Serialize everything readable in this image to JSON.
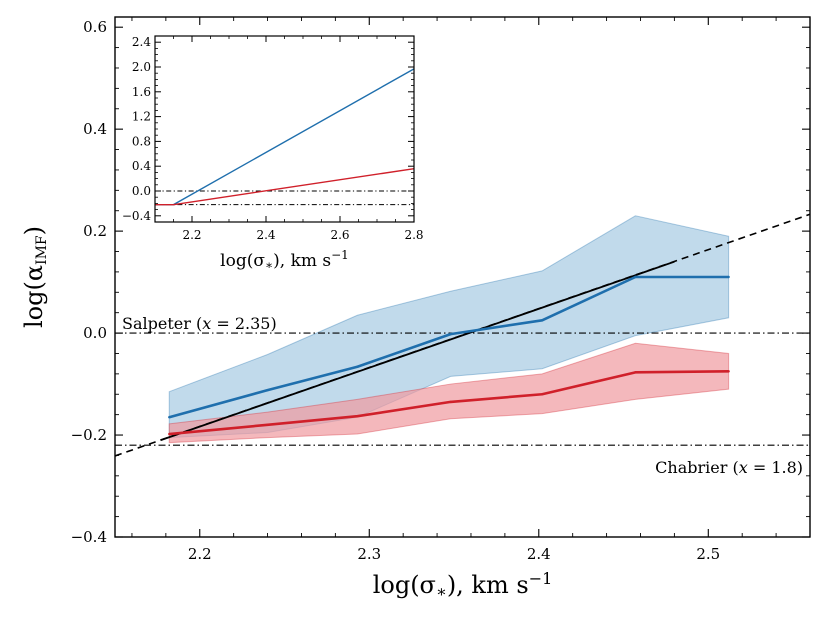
{
  "chart_data": [
    {
      "type": "line",
      "name": "main",
      "xlabel": "log(σ*), km s−1",
      "ylabel": "log(αIMF)",
      "xlim": [
        2.15,
        2.56
      ],
      "ylim": [
        -0.4,
        0.62
      ],
      "xticks": [
        2.2,
        2.3,
        2.4,
        2.5
      ],
      "xtick_labels": [
        "2.2",
        "2.3",
        "2.4",
        "2.5"
      ],
      "yticks": [
        -0.4,
        -0.2,
        0.0,
        0.2,
        0.4,
        0.6
      ],
      "ytick_labels": [
        "−0.4",
        "−0.2",
        "0.0",
        "0.2",
        "0.4",
        "0.6"
      ],
      "series": [
        {
          "name": "blue",
          "color": "#1f6fad",
          "fill_color": "#a6cbe3",
          "x": [
            2.182,
            2.24,
            2.293,
            2.348,
            2.402,
            2.457,
            2.512
          ],
          "y": [
            -0.165,
            -0.112,
            -0.066,
            -0.002,
            0.025,
            0.11,
            0.11
          ],
          "upper": [
            -0.115,
            -0.042,
            0.035,
            0.082,
            0.122,
            0.23,
            0.19
          ],
          "lower": [
            -0.205,
            -0.195,
            -0.165,
            -0.085,
            -0.07,
            -0.005,
            0.03
          ]
        },
        {
          "name": "red",
          "color": "#d0202a",
          "fill_color": "#ef9aa0",
          "x": [
            2.182,
            2.24,
            2.293,
            2.348,
            2.402,
            2.457,
            2.512
          ],
          "y": [
            -0.198,
            -0.18,
            -0.163,
            -0.135,
            -0.12,
            -0.077,
            -0.075
          ],
          "upper": [
            -0.178,
            -0.155,
            -0.13,
            -0.1,
            -0.08,
            -0.02,
            -0.04
          ],
          "lower": [
            -0.215,
            -0.205,
            -0.198,
            -0.168,
            -0.158,
            -0.13,
            -0.11
          ]
        }
      ],
      "fit_line": {
        "color": "#000000",
        "x": [
          2.177,
          2.48
        ],
        "y": [
          -0.21,
          0.14
        ]
      },
      "fit_extension": {
        "style": "dashed",
        "x": [
          2.15,
          2.56
        ],
        "y": [
          -0.241,
          0.233
        ]
      },
      "reference_lines": [
        {
          "name": "salpeter",
          "y": 0.0,
          "label": "Salpeter (x = 2.35)",
          "label_position": "left"
        },
        {
          "name": "chabrier",
          "y": -0.22,
          "label": "Chabrier (x = 1.8)",
          "label_position": "right"
        }
      ]
    },
    {
      "type": "line",
      "name": "inset",
      "xlabel": "log(σ*), km s−1",
      "xlim": [
        2.1,
        2.8
      ],
      "ylim": [
        -0.5,
        2.5
      ],
      "xticks": [
        2.2,
        2.4,
        2.6,
        2.8
      ],
      "xtick_labels": [
        "2.2",
        "2.4",
        "2.6",
        "2.8"
      ],
      "yticks": [
        -0.4,
        0.0,
        0.4,
        0.8,
        1.2,
        1.6,
        2.0,
        2.4
      ],
      "ytick_labels": [
        "−0.4",
        "0.0",
        "0.4",
        "0.8",
        "1.2",
        "1.6",
        "2.0",
        "2.4"
      ],
      "series": [
        {
          "name": "blue",
          "color": "#1f6fad",
          "x": [
            2.1,
            2.15,
            2.8
          ],
          "y": [
            -0.22,
            -0.22,
            1.97
          ]
        },
        {
          "name": "red",
          "color": "#d0202a",
          "x": [
            2.1,
            2.15,
            2.8
          ],
          "y": [
            -0.22,
            -0.22,
            0.36
          ]
        }
      ],
      "reference_lines": [
        {
          "name": "salpeter",
          "y": 0.0
        },
        {
          "name": "chabrier",
          "y": -0.22
        }
      ]
    }
  ]
}
